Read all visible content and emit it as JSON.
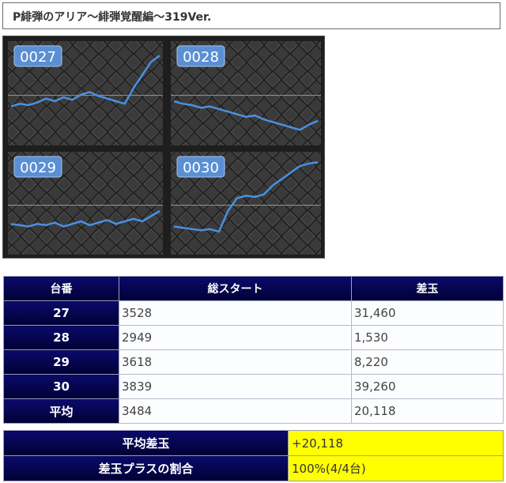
{
  "title": "P緋弾のアリア～緋弾覚醒編～319Ver.",
  "graphs": [
    {
      "label": "0027",
      "values": [
        44,
        42,
        43,
        41,
        38,
        40,
        37,
        39,
        35,
        33,
        36,
        38,
        40,
        42,
        30,
        20,
        10,
        5
      ]
    },
    {
      "label": "0028",
      "values": [
        40,
        42,
        43,
        45,
        44,
        46,
        48,
        50,
        52,
        51,
        54,
        56,
        58,
        60,
        62,
        58,
        55
      ]
    },
    {
      "label": "0029",
      "values": [
        50,
        51,
        52,
        50,
        51,
        49,
        52,
        50,
        48,
        51,
        49,
        47,
        50,
        48,
        46,
        48,
        44,
        40
      ]
    },
    {
      "label": "0030",
      "values": [
        52,
        53,
        54,
        55,
        54,
        56,
        40,
        30,
        28,
        29,
        27,
        20,
        15,
        10,
        5,
        3,
        2
      ]
    }
  ],
  "colors": {
    "header_dark": "#0a0a6a",
    "highlight": "#ffff00",
    "graph_line": "#4a90e2"
  },
  "table": {
    "headers": [
      "台番",
      "総スタート",
      "差玉"
    ],
    "rows": [
      {
        "id": "27",
        "start": "3528",
        "diff": "31,460"
      },
      {
        "id": "28",
        "start": "2949",
        "diff": "1,530"
      },
      {
        "id": "29",
        "start": "3618",
        "diff": "8,220"
      },
      {
        "id": "30",
        "start": "3839",
        "diff": "39,260"
      },
      {
        "id": "平均",
        "start": "3484",
        "diff": "20,118"
      }
    ]
  },
  "summary": [
    {
      "label": "平均差玉",
      "value": "+20,118"
    },
    {
      "label": "差玉プラスの割合",
      "value": "100%(4/4台)"
    }
  ]
}
